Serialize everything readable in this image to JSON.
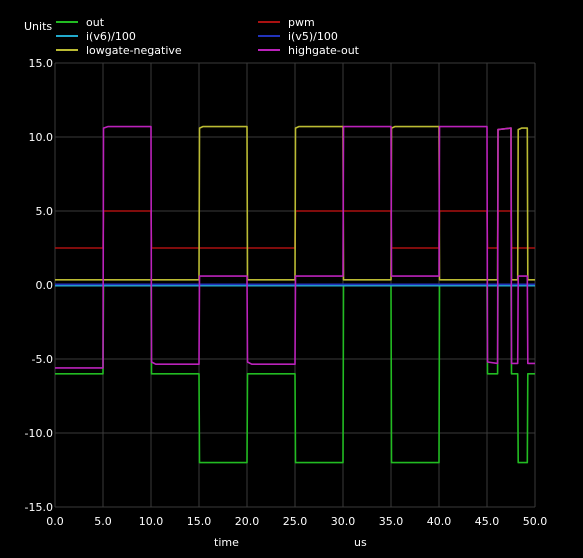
{
  "chart_data": {
    "type": "line",
    "ylabel": "Units",
    "xlabel": "time",
    "xunit": "us",
    "xlim": [
      0,
      50
    ],
    "ylim": [
      -15,
      15
    ],
    "x_ticks": [
      "0.0",
      "5.0",
      "10.0",
      "15.0",
      "20.0",
      "25.0",
      "30.0",
      "35.0",
      "40.0",
      "45.0",
      "50.0"
    ],
    "y_ticks": [
      "15.0",
      "10.0",
      "5.0",
      "0.0",
      "-5.0",
      "-10.0",
      "-15.0"
    ],
    "grid": true,
    "background": "#000000",
    "grid_color": "#3a3a3a",
    "series": [
      {
        "name": "out",
        "color": "#22bb22",
        "points": [
          [
            0,
            -6
          ],
          [
            5,
            -6
          ],
          [
            5.05,
            0
          ],
          [
            10,
            0
          ],
          [
            10.05,
            -6
          ],
          [
            15,
            -6
          ],
          [
            15.05,
            -12
          ],
          [
            20,
            -12
          ],
          [
            20.05,
            -6
          ],
          [
            25,
            -6
          ],
          [
            25.05,
            -12
          ],
          [
            30,
            -12
          ],
          [
            30.05,
            0
          ],
          [
            35,
            0
          ],
          [
            35.05,
            -12
          ],
          [
            40,
            -12
          ],
          [
            40.05,
            0
          ],
          [
            45,
            0
          ],
          [
            45.05,
            -6
          ],
          [
            46.1,
            -6
          ],
          [
            46.15,
            0
          ],
          [
            47.5,
            0
          ],
          [
            47.55,
            -6
          ],
          [
            48.2,
            -6
          ],
          [
            48.25,
            -12
          ],
          [
            49.2,
            -12
          ],
          [
            49.25,
            -6
          ],
          [
            50,
            -6
          ]
        ]
      },
      {
        "name": "pwm",
        "color": "#aa1111",
        "points": [
          [
            0,
            2.5
          ],
          [
            5,
            2.5
          ],
          [
            5.05,
            5
          ],
          [
            10,
            5
          ],
          [
            10.05,
            2.5
          ],
          [
            20,
            2.5
          ],
          [
            20.05,
            2.5
          ],
          [
            25,
            2.5
          ],
          [
            25.05,
            5
          ],
          [
            30,
            5
          ],
          [
            30.05,
            5
          ],
          [
            35,
            5
          ],
          [
            35.05,
            2.5
          ],
          [
            40,
            2.5
          ],
          [
            40.05,
            5
          ],
          [
            45,
            5
          ],
          [
            45.05,
            2.5
          ],
          [
            46.1,
            2.5
          ],
          [
            46.15,
            5
          ],
          [
            47.5,
            5
          ],
          [
            47.55,
            2.5
          ],
          [
            48.2,
            2.5
          ],
          [
            48.25,
            2.5
          ],
          [
            50,
            2.5
          ]
        ]
      },
      {
        "name": "i(v6)/100",
        "color": "#22aacc",
        "points": [
          [
            0,
            -0.05
          ],
          [
            50,
            -0.05
          ]
        ]
      },
      {
        "name": "i(v5)/100",
        "color": "#2233bb",
        "points": [
          [
            0,
            0.05
          ],
          [
            50,
            0.05
          ]
        ]
      },
      {
        "name": "lowgate-negative",
        "color": "#bbbb33",
        "points": [
          [
            0,
            0.35
          ],
          [
            15,
            0.35
          ],
          [
            15.05,
            10.6
          ],
          [
            15.4,
            10.7
          ],
          [
            20,
            10.7
          ],
          [
            20.05,
            0.35
          ],
          [
            25,
            0.35
          ],
          [
            25.05,
            10.6
          ],
          [
            25.4,
            10.7
          ],
          [
            30,
            10.7
          ],
          [
            30.05,
            0.35
          ],
          [
            35,
            0.35
          ],
          [
            35.05,
            10.6
          ],
          [
            35.4,
            10.7
          ],
          [
            40,
            10.7
          ],
          [
            40.05,
            0.35
          ],
          [
            46.1,
            0.35
          ],
          [
            46.15,
            10.5
          ],
          [
            47.5,
            10.6
          ],
          [
            47.55,
            0.35
          ],
          [
            48.2,
            0.35
          ],
          [
            48.25,
            10.5
          ],
          [
            48.6,
            10.6
          ],
          [
            49.2,
            10.6
          ],
          [
            49.25,
            0.35
          ],
          [
            50,
            0.35
          ]
        ]
      },
      {
        "name": "highgate-out",
        "color": "#bb22bb",
        "points": [
          [
            0,
            -5.6
          ],
          [
            5,
            -5.6
          ],
          [
            5.05,
            10.6
          ],
          [
            5.5,
            10.7
          ],
          [
            10,
            10.7
          ],
          [
            10.05,
            -5.2
          ],
          [
            10.5,
            -5.35
          ],
          [
            15,
            -5.35
          ],
          [
            15.05,
            0.6
          ],
          [
            20,
            0.6
          ],
          [
            20.05,
            -5.2
          ],
          [
            20.5,
            -5.35
          ],
          [
            25,
            -5.35
          ],
          [
            25.05,
            0.6
          ],
          [
            30,
            0.6
          ],
          [
            30.05,
            10.7
          ],
          [
            35,
            10.7
          ],
          [
            35.05,
            0.6
          ],
          [
            40,
            0.6
          ],
          [
            40.05,
            10.7
          ],
          [
            45,
            10.7
          ],
          [
            45.05,
            -5.2
          ],
          [
            46.1,
            -5.3
          ],
          [
            46.15,
            10.5
          ],
          [
            47.5,
            10.6
          ],
          [
            47.55,
            -5.3
          ],
          [
            48.2,
            -5.3
          ],
          [
            48.25,
            0.6
          ],
          [
            49.2,
            0.6
          ],
          [
            49.25,
            -5.3
          ],
          [
            50,
            -5.3
          ]
        ]
      }
    ],
    "legend_position": "top"
  }
}
